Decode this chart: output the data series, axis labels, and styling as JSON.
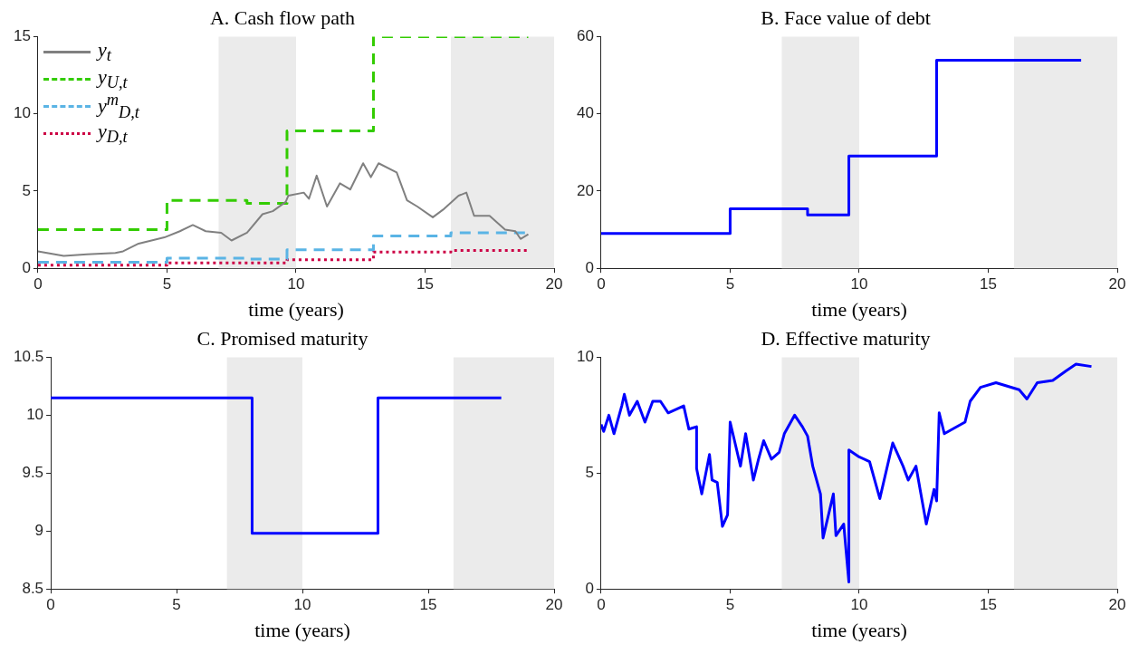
{
  "chart_data": [
    {
      "type": "line",
      "title": "A. Cash flow path",
      "xlabel": "time (years)",
      "xlim": [
        0,
        20
      ],
      "xticks": [
        0,
        5,
        10,
        15,
        20
      ],
      "ylim": [
        0,
        15
      ],
      "yticks": [
        0,
        5,
        10,
        15
      ],
      "grid": false,
      "legend": "top left",
      "bands": [
        {
          "axis": "x",
          "from": 7,
          "to": 10,
          "color": "#ebebeb"
        },
        {
          "axis": "x",
          "from": 16,
          "to": 20,
          "color": "#ebebeb"
        }
      ],
      "series": [
        {
          "name": "y$_{t}$",
          "type": "line",
          "line_style": "solid",
          "color": "#808080",
          "x": [
            0,
            1,
            1.9,
            3,
            3.3,
            3.9,
            4.9,
            5.5,
            6,
            6.5,
            7.1,
            7.5,
            8.1,
            8.7,
            9.1,
            9.6,
            9.7,
            10.3,
            10.5,
            10.8,
            11.2,
            11.7,
            12.1,
            12.6,
            12.9,
            13.2,
            13.9,
            14.3,
            14.7,
            15.3,
            15.7,
            16.3,
            16.6,
            16.9,
            17.5,
            18.1,
            18.5,
            18.7,
            19
          ],
          "values": [
            1.1,
            0.8,
            0.9,
            1,
            1.1,
            1.6,
            2,
            2.4,
            2.8,
            2.4,
            2.3,
            1.8,
            2.3,
            3.5,
            3.7,
            4.3,
            4.7,
            4.9,
            4.5,
            6,
            4,
            5.5,
            5.1,
            6.8,
            5.9,
            6.8,
            6.2,
            4.4,
            4,
            3.3,
            3.8,
            4.7,
            4.9,
            3.4,
            3.4,
            2.5,
            2.4,
            1.9,
            2.2
          ]
        },
        {
          "name": "y$_{U,t}$",
          "type": "step",
          "line_style": "dashed",
          "color": "#33cc00",
          "x": [
            0,
            5,
            8.1,
            9.65,
            13,
            19
          ],
          "values": [
            2.5,
            4.4,
            4.2,
            8.9,
            15,
            15
          ]
        },
        {
          "name": "y$^{m}$$_{D,t}$",
          "type": "step",
          "line_style": "dashed",
          "color": "#5ab4e5",
          "x": [
            0,
            5,
            8.1,
            9.65,
            13,
            16,
            19
          ],
          "values": [
            0.4,
            0.65,
            0.6,
            1.2,
            2.1,
            2.3,
            2.3
          ]
        },
        {
          "name": "y$_{D,t}$",
          "type": "step",
          "line_style": "dotted",
          "color": "#cc0044",
          "x": [
            0,
            5,
            9.65,
            13,
            16,
            19
          ],
          "values": [
            0.2,
            0.35,
            0.55,
            1.05,
            1.15,
            1.15
          ]
        }
      ]
    },
    {
      "type": "step",
      "title": "B. Face value of debt",
      "xlabel": "time (years)",
      "xlim": [
        0,
        20
      ],
      "xticks": [
        0,
        5,
        10,
        15,
        20
      ],
      "ylim": [
        0,
        60
      ],
      "yticks": [
        0,
        20,
        40,
        60
      ],
      "grid": false,
      "bands": [
        {
          "axis": "x",
          "from": 7,
          "to": 10,
          "color": "#ebebeb"
        },
        {
          "axis": "x",
          "from": 16,
          "to": 20,
          "color": "#ebebeb"
        }
      ],
      "series": [
        {
          "color": "#0000ff",
          "x": [
            0,
            5,
            8,
            9.6,
            13,
            18.6
          ],
          "values": [
            9,
            15.4,
            13.8,
            29.1,
            53.9,
            53.9
          ]
        }
      ]
    },
    {
      "type": "step",
      "title": "C. Promised maturity",
      "xlabel": "time (years)",
      "xlim": [
        0,
        20
      ],
      "xticks": [
        0,
        5,
        10,
        15,
        20
      ],
      "ylim": [
        8.5,
        10.5
      ],
      "yticks": [
        8.5,
        9,
        9.5,
        10,
        10.5
      ],
      "grid": false,
      "bands": [
        {
          "axis": "x",
          "from": 7,
          "to": 10,
          "color": "#ebebeb"
        },
        {
          "axis": "x",
          "from": 16,
          "to": 20,
          "color": "#ebebeb"
        }
      ],
      "series": [
        {
          "color": "#0000ff",
          "x": [
            0,
            8,
            13,
            17.9
          ],
          "values": [
            10.15,
            8.98,
            10.15,
            10.15
          ]
        }
      ]
    },
    {
      "type": "line",
      "title": "D. Effective maturity",
      "xlabel": "time (years)",
      "xlim": [
        0,
        20
      ],
      "xticks": [
        0,
        5,
        10,
        15,
        20
      ],
      "ylim": [
        0,
        10
      ],
      "yticks": [
        0,
        5,
        10
      ],
      "grid": false,
      "bands": [
        {
          "axis": "x",
          "from": 7,
          "to": 10,
          "color": "#ebebeb"
        },
        {
          "axis": "x",
          "from": 16,
          "to": 20,
          "color": "#ebebeb"
        }
      ],
      "series": [
        {
          "color": "#0000ff",
          "x": [
            0,
            0.1,
            0.3,
            0.5,
            0.8,
            0.9,
            1.1,
            1.4,
            1.7,
            2,
            2.3,
            2.6,
            3.2,
            3.4,
            3.7,
            3.7,
            3.9,
            4.2,
            4.3,
            4.5,
            4.7,
            4.9,
            5,
            5.4,
            5.6,
            5.9,
            6.1,
            6.3,
            6.6,
            6.9,
            7.1,
            7.5,
            7.8,
            8,
            8.2,
            8.5,
            8.6,
            9,
            9.1,
            9.4,
            9.6,
            9.6,
            10,
            10.4,
            10.8,
            11.3,
            11.7,
            11.9,
            12.2,
            12.6,
            12.9,
            13,
            13.1,
            13.3,
            14.1,
            14.3,
            14.7,
            15.3,
            16.2,
            16.5,
            16.9,
            17.5,
            18,
            18.4,
            19
          ],
          "values": [
            7.1,
            6.8,
            7.5,
            6.7,
            7.9,
            8.4,
            7.5,
            8.1,
            7.2,
            8.1,
            8.1,
            7.6,
            7.9,
            6.9,
            7,
            5.2,
            4.1,
            5.8,
            4.7,
            4.6,
            2.7,
            3.2,
            7.2,
            5.3,
            6.7,
            4.7,
            5.6,
            6.4,
            5.6,
            5.9,
            6.7,
            7.5,
            7,
            6.6,
            5.3,
            4.1,
            2.2,
            4.1,
            2.3,
            2.8,
            0.3,
            6,
            5.7,
            5.5,
            3.9,
            6.3,
            5.3,
            4.7,
            5.3,
            2.8,
            4.3,
            3.8,
            7.6,
            6.7,
            7.2,
            8.1,
            8.7,
            8.9,
            8.6,
            8.2,
            8.9,
            9,
            9.4,
            9.7,
            9.6
          ]
        }
      ]
    }
  ]
}
